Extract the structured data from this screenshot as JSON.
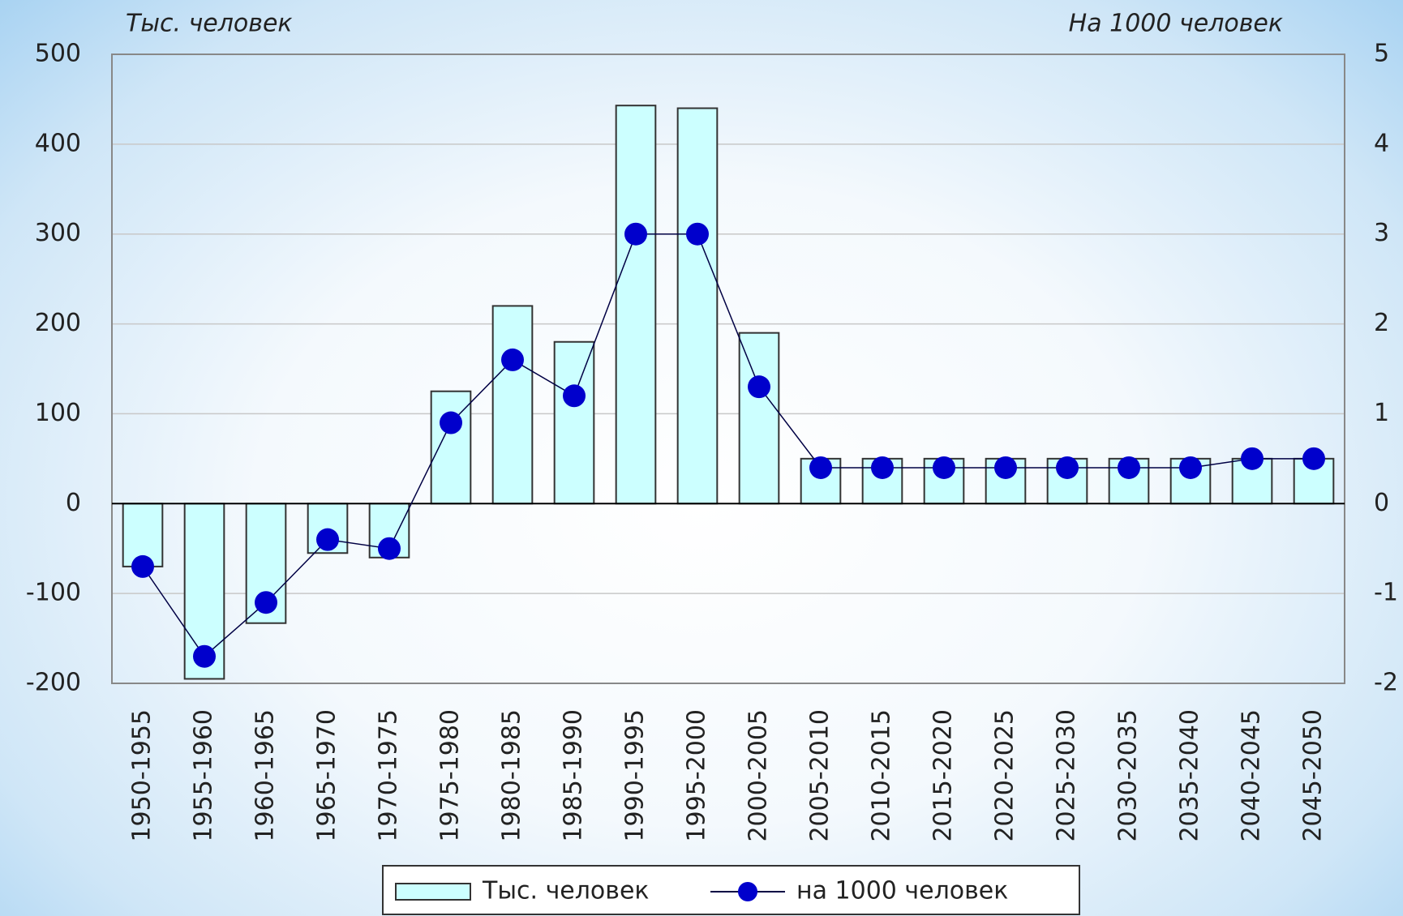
{
  "chart_data": {
    "type": "bar",
    "y_label": "Тыс. человек",
    "y2_label": "На 1000 человек",
    "categories": [
      "1950-1955",
      "1955-1960",
      "1960-1965",
      "1965-1970",
      "1970-1975",
      "1975-1980",
      "1980-1985",
      "1985-1990",
      "1990-1995",
      "1995-2000",
      "2000-2005",
      "2005-2010",
      "2010-2015",
      "2015-2020",
      "2020-2025",
      "2025-2030",
      "2030-2035",
      "2035-2040",
      "2040-2045",
      "2045-2050"
    ],
    "series": [
      {
        "name": "Тыс. человек",
        "type": "bar",
        "color": "#ccffff",
        "values": [
          -70,
          -195,
          -133,
          -55,
          -60,
          125,
          220,
          180,
          443,
          440,
          190,
          50,
          50,
          50,
          50,
          50,
          50,
          50,
          50,
          50
        ]
      },
      {
        "name": "на 1000 человек",
        "type": "line",
        "axis": "y2",
        "color": "#0000cc",
        "values": [
          -0.7,
          -1.7,
          -1.1,
          -0.4,
          -0.5,
          0.9,
          1.6,
          1.2,
          3.0,
          3.0,
          1.3,
          0.4,
          0.4,
          0.4,
          0.4,
          0.4,
          0.4,
          0.4,
          0.5,
          0.5
        ]
      }
    ],
    "ylim": [
      -200,
      500
    ],
    "yticks": [
      -200,
      -100,
      0,
      100,
      200,
      300,
      400,
      500
    ],
    "y2lim": [
      -2,
      5
    ],
    "y2ticks": [
      -2,
      -1,
      0,
      1,
      2,
      3,
      4,
      5
    ],
    "grid": true,
    "legend": "bottom"
  }
}
